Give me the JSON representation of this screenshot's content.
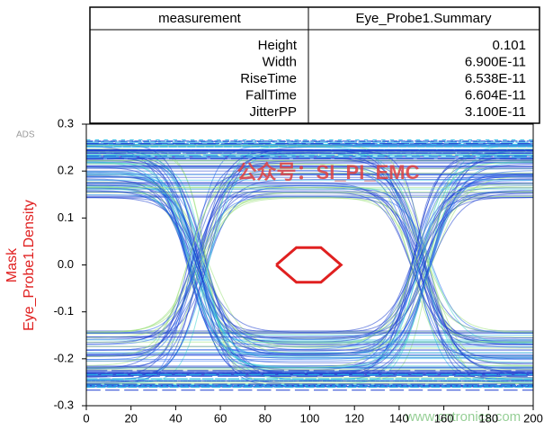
{
  "table": {
    "header": [
      "measurement",
      "Eye_Probe1.Summary"
    ],
    "rows": [
      [
        "Height",
        "0.101"
      ],
      [
        "Width",
        "6.900E-11"
      ],
      [
        "RiseTime",
        "6.538E-11"
      ],
      [
        "FallTime",
        "6.604E-11"
      ],
      [
        "JitterPP",
        "3.100E-11"
      ]
    ]
  },
  "chart_data": {
    "type": "line",
    "tool_label": "ADS",
    "watermarks": [
      "公众号：SI_PI_EMC",
      "www.cntronics.com"
    ],
    "series": [
      {
        "name": "Mask",
        "color": "#e02020",
        "x": [
          85,
          94,
          105,
          114,
          105,
          94,
          85
        ],
        "values": [
          0,
          0.037,
          0.037,
          0,
          -0.037,
          -0.037,
          0
        ]
      },
      {
        "name": "Eye_Probe1.Density",
        "color": "#1e3fd0"
      }
    ],
    "xlim": [
      0,
      200
    ],
    "xticks": [
      0,
      20,
      40,
      60,
      80,
      100,
      120,
      140,
      160,
      180,
      200
    ],
    "ylim": [
      -0.3,
      0.3
    ],
    "yticks": [
      0.3,
      0.2,
      0.1,
      {
        "value": 0,
        "label": "0.0"
      },
      -0.1,
      -0.2,
      -0.3
    ]
  }
}
